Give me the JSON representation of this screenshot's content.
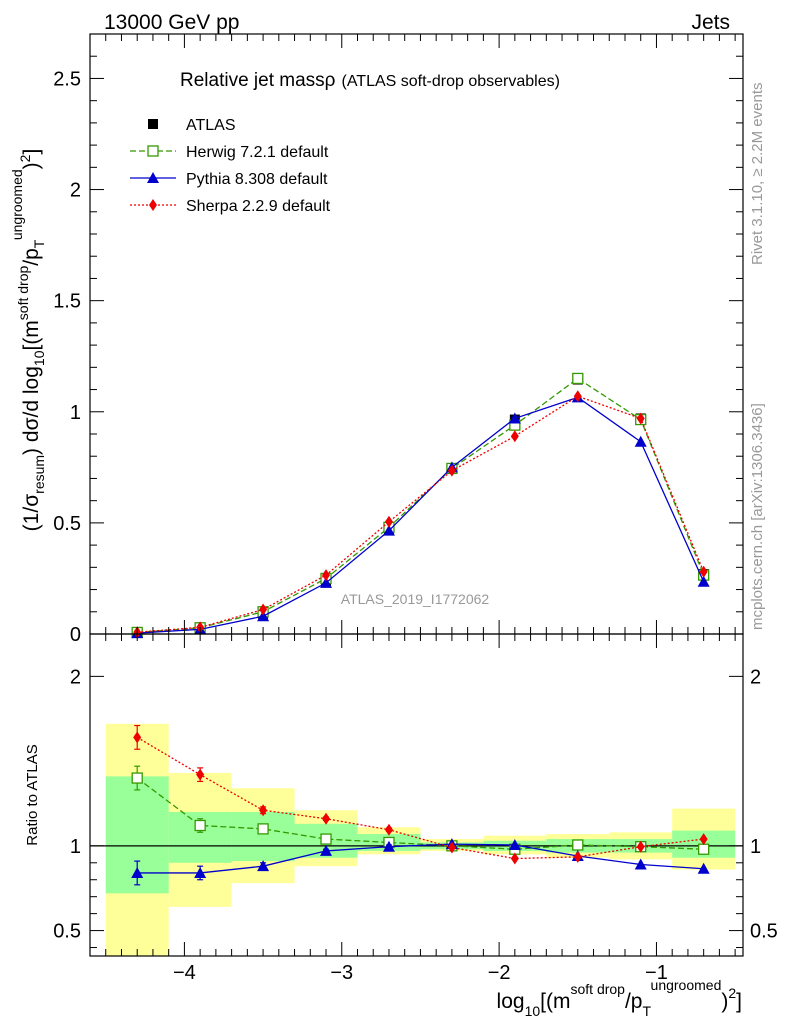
{
  "header": {
    "left": "13000 GeV pp",
    "right": "Jets"
  },
  "side_text": {
    "rivet": "Rivet 3.1.10, ≥ 2.2M events",
    "mcplots": "mcplots.cern.ch [arXiv:1306.3436]"
  },
  "watermark": "ATLAS_2019_I1772062",
  "chart_data": [
    {
      "type": "line",
      "title": {
        "main": "Relative jet massρ",
        "sub": "(ATLAS soft-drop observables)"
      },
      "ylabel": "(1/σresum) dσ/d log10[(m^soft drop/pT^ungroomed)2]",
      "xlim": [
        -4.6,
        -0.45
      ],
      "ylim": [
        0,
        2.7
      ],
      "yticks": [
        0,
        0.5,
        1,
        1.5,
        2,
        2.5
      ],
      "yticklabels": [
        "0",
        "0.5",
        "1",
        "1.5",
        "2",
        "2.5"
      ],
      "legend_position": "top-left",
      "x": [
        -4.3,
        -3.9,
        -3.5,
        -3.1,
        -2.7,
        -2.3,
        -1.9,
        -1.5,
        -1.1,
        -0.7
      ],
      "x_edges": [
        -4.5,
        -4.1,
        -3.7,
        -3.3,
        -2.9,
        -2.5,
        -2.1,
        -1.7,
        -1.3,
        -0.9,
        -0.5
      ],
      "series": [
        {
          "name": "ATLAS",
          "color": "#000000",
          "marker": "filled-square",
          "line": "none",
          "values": [
            0.005,
            0.025,
            0.09,
            0.24,
            0.47,
            0.745,
            0.965,
            1.145,
            0.97,
            0.27
          ]
        },
        {
          "name": "Herwig 7.2.1 default",
          "color": "#339900",
          "marker": "open-square",
          "line": "dashed",
          "values": [
            0.007,
            0.028,
            0.1,
            0.25,
            0.48,
            0.745,
            0.94,
            1.15,
            0.965,
            0.265
          ]
        },
        {
          "name": "Pythia 8.308 default",
          "color": "#0000cc",
          "marker": "filled-triangle",
          "line": "solid",
          "values": [
            0.004,
            0.021,
            0.08,
            0.23,
            0.465,
            0.75,
            0.97,
            1.065,
            0.865,
            0.235
          ]
        },
        {
          "name": "Sherpa 2.2.9 default",
          "color": "#ee0000",
          "marker": "filled-diamond",
          "line": "dotted",
          "values": [
            0.008,
            0.03,
            0.11,
            0.265,
            0.505,
            0.735,
            0.89,
            1.07,
            0.97,
            0.28
          ]
        }
      ]
    },
    {
      "type": "line",
      "ylabel": "Ratio to ATLAS",
      "xlabel": "log10[(m^soft drop/pT^ungroomed)2]",
      "xlim": [
        -4.6,
        -0.45
      ],
      "ylim": [
        0.35,
        2.25
      ],
      "yticks": [
        0.5,
        1,
        2
      ],
      "yticklabels": [
        "0.5",
        "1",
        "2"
      ],
      "xticks": [
        -4,
        -3,
        -2,
        -1
      ],
      "xticklabels": [
        "−4",
        "−3",
        "−2",
        "−1"
      ],
      "reference_line": 1,
      "x": [
        -4.3,
        -3.9,
        -3.5,
        -3.1,
        -2.7,
        -2.3,
        -1.9,
        -1.5,
        -1.1,
        -0.7
      ],
      "x_edges": [
        -4.5,
        -4.1,
        -3.7,
        -3.3,
        -2.9,
        -2.5,
        -2.1,
        -1.7,
        -1.3,
        -0.9,
        -0.5
      ],
      "bands": {
        "outer": {
          "color": "#ffff99",
          "low": [
            0.3,
            0.64,
            0.78,
            0.88,
            0.95,
            0.97,
            0.95,
            0.93,
            0.92,
            0.86
          ],
          "high": [
            1.72,
            1.43,
            1.34,
            1.21,
            1.11,
            1.04,
            1.06,
            1.07,
            1.08,
            1.22
          ]
        },
        "inner": {
          "color": "#99ff99",
          "low": [
            0.72,
            0.9,
            0.91,
            0.93,
            0.97,
            0.98,
            0.97,
            0.96,
            0.96,
            0.93
          ],
          "high": [
            1.41,
            1.2,
            1.2,
            1.13,
            1.07,
            1.02,
            1.03,
            1.04,
            1.04,
            1.09
          ]
        }
      },
      "series": [
        {
          "name": "Herwig 7.2.1 default",
          "color": "#339900",
          "values": [
            1.4,
            1.12,
            1.1,
            1.04,
            1.02,
            1.0,
            0.98,
            1.005,
            0.995,
            0.98
          ],
          "errors": [
            0.07,
            0.04,
            0.02,
            0.01,
            0.01,
            0.005,
            0.005,
            0.005,
            0.005,
            0.005
          ]
        },
        {
          "name": "Pythia 8.308 default",
          "color": "#0000cc",
          "values": [
            0.84,
            0.84,
            0.88,
            0.97,
            0.995,
            1.01,
            1.005,
            0.94,
            0.89,
            0.865
          ],
          "errors": [
            0.07,
            0.04,
            0.02,
            0.01,
            0.01,
            0.005,
            0.005,
            0.005,
            0.005,
            0.005
          ]
        },
        {
          "name": "Sherpa 2.2.9 default",
          "color": "#ee0000",
          "values": [
            1.64,
            1.42,
            1.21,
            1.16,
            1.095,
            0.99,
            0.925,
            0.935,
            0.995,
            1.04
          ],
          "errors": [
            0.07,
            0.04,
            0.02,
            0.01,
            0.01,
            0.005,
            0.005,
            0.005,
            0.005,
            0.005
          ]
        }
      ]
    }
  ]
}
